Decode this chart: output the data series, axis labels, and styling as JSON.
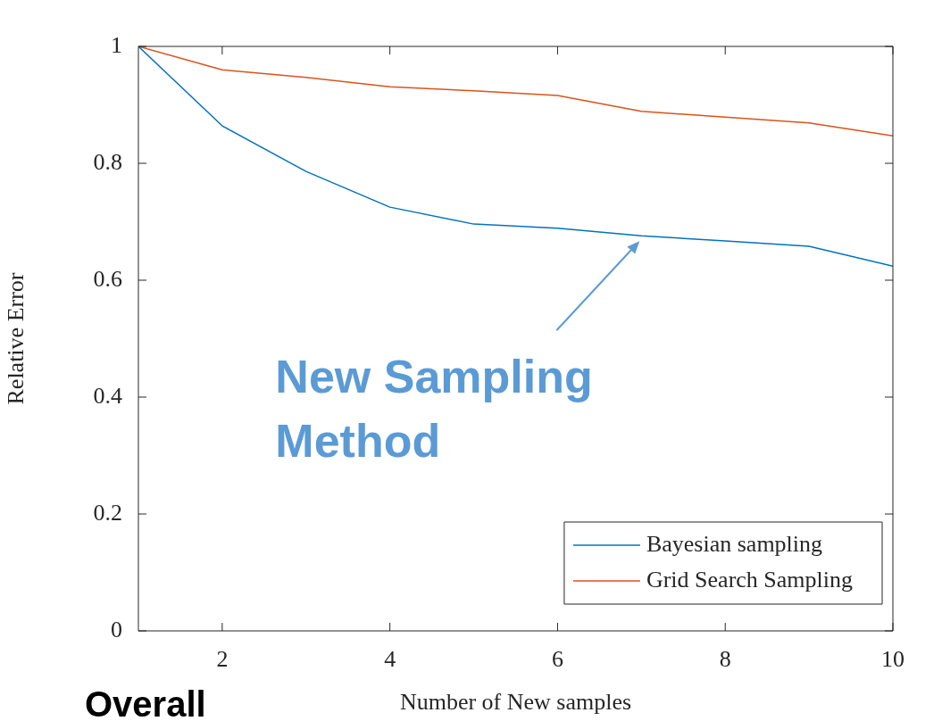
{
  "chart_data": {
    "type": "line",
    "xlabel": "Number of New samples",
    "ylabel": "Relative Error",
    "x": [
      1,
      2,
      3,
      4,
      5,
      6,
      7,
      8,
      9,
      10
    ],
    "series": [
      {
        "name": "Bayesian sampling",
        "color": "#0072bd",
        "values": [
          1,
          0.864,
          0.786,
          0.725,
          0.696,
          0.689,
          0.676,
          0.667,
          0.658,
          0.624
        ]
      },
      {
        "name": "Grid Search Sampling",
        "color": "#d95319",
        "values": [
          1,
          0.96,
          0.947,
          0.931,
          0.924,
          0.916,
          0.889,
          0.879,
          0.869,
          0.847
        ]
      }
    ],
    "xlim": [
      1,
      10
    ],
    "xticks": [
      2,
      4,
      6,
      8,
      10
    ],
    "ylim": [
      0,
      1
    ],
    "yticks": [
      0,
      0.2,
      0.4,
      0.6,
      0.8,
      1
    ],
    "annotations": [
      {
        "text": "New Sampling Method",
        "x": 7,
        "y": 0.676
      },
      "Overall"
    ],
    "legend": "bottom right",
    "grid": false,
    "marker": "none",
    "line_style": "solid"
  }
}
